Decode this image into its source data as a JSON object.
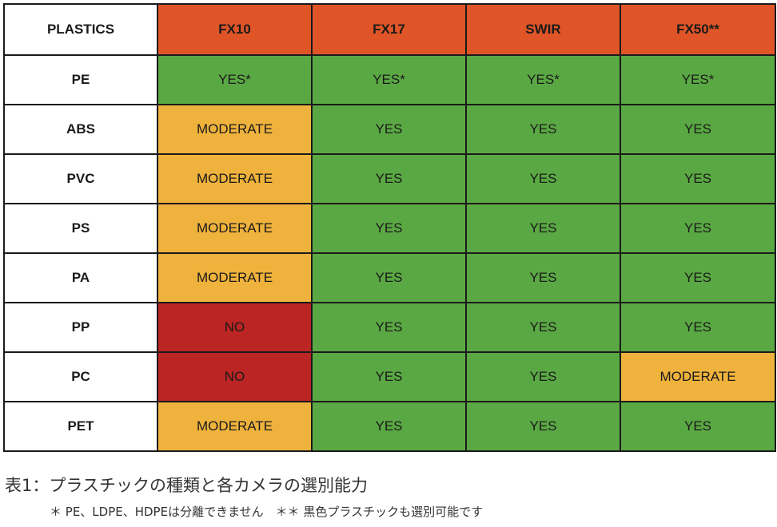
{
  "table": {
    "corner_label": "PLASTICS",
    "columns": [
      "FX10",
      "FX17",
      "SWIR",
      "FX50**"
    ],
    "rows": [
      {
        "material": "PE",
        "values": [
          "YES*",
          "YES*",
          "YES*",
          "YES*"
        ]
      },
      {
        "material": "ABS",
        "values": [
          "MODERATE",
          "YES",
          "YES",
          "YES"
        ]
      },
      {
        "material": "PVC",
        "values": [
          "MODERATE",
          "YES",
          "YES",
          "YES"
        ]
      },
      {
        "material": "PS",
        "values": [
          "MODERATE",
          "YES",
          "YES",
          "YES"
        ]
      },
      {
        "material": "PA",
        "values": [
          "MODERATE",
          "YES",
          "YES",
          "YES"
        ]
      },
      {
        "material": "PP",
        "values": [
          "NO",
          "YES",
          "YES",
          "YES"
        ]
      },
      {
        "material": "PC",
        "values": [
          "NO",
          "YES",
          "YES",
          "MODERATE"
        ]
      },
      {
        "material": "PET",
        "values": [
          "MODERATE",
          "YES",
          "YES",
          "YES"
        ]
      }
    ]
  },
  "colors": {
    "header": "#e05527",
    "yes": "#5aa843",
    "moderate": "#efb23c",
    "no": "#bb2524"
  },
  "caption": "表1：プラスチックの種類と各カメラの選別能力",
  "footnote": "＊ PE、LDPE、HDPEは分離できません　＊＊ 黒色プラスチックも選別可能です"
}
